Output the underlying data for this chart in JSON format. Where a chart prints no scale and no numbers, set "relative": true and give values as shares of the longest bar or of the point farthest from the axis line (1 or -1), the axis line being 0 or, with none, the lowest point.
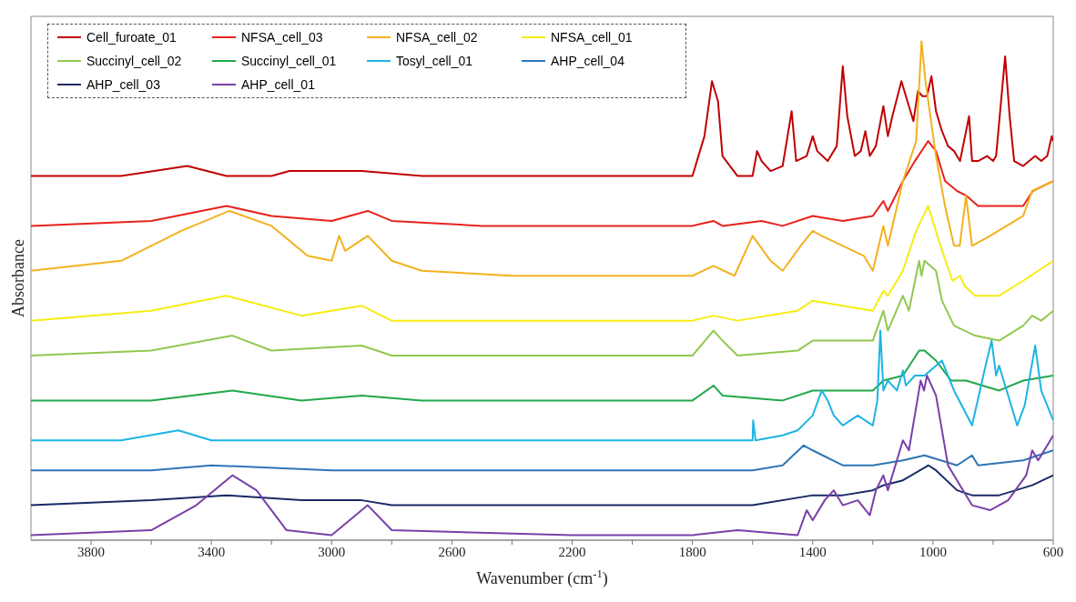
{
  "chart_data": {
    "type": "line",
    "relative": true,
    "xlabel": "Wavenumber (cm$^{-1}$)",
    "ylabel": "Absorbance",
    "legend": "top left",
    "marker": "none",
    "line_style": "solid",
    "xlim": [
      4000,
      600
    ],
    "xticks": [
      3800,
      {
        "value": 3600,
        "label": null
      },
      3400,
      {
        "value": 3200,
        "label": null
      },
      3000,
      {
        "value": 2800,
        "label": null
      },
      2600,
      {
        "value": 2400,
        "label": null
      },
      2200,
      {
        "value": 2000,
        "label": null
      },
      1800,
      {
        "value": 1600,
        "label": null
      },
      1400,
      {
        "value": 1200,
        "label": null
      },
      1000,
      {
        "value": 800,
        "label": null
      },
      600
    ],
    "series": [
      {
        "name": "Cell_furoate_01",
        "color": "#c00000",
        "x": [
          4000,
          3700,
          3480,
          3350,
          3200,
          3140,
          3100,
          2900,
          2700,
          2400,
          2200,
          1800,
          1760,
          1735,
          1715,
          1700,
          1650,
          1600,
          1585,
          1570,
          1540,
          1500,
          1470,
          1455,
          1420,
          1400,
          1385,
          1350,
          1320,
          1300,
          1285,
          1260,
          1240,
          1225,
          1210,
          1190,
          1165,
          1150,
          1135,
          1105,
          1085,
          1065,
          1050,
          1035,
          1020,
          1005,
          990,
          970,
          950,
          930,
          910,
          880,
          870,
          850,
          820,
          800,
          790,
          760,
          745,
          730,
          700,
          680,
          660,
          640,
          620,
          605,
          600
        ],
        "values": [
          0.73,
          0.73,
          0.75,
          0.73,
          0.73,
          0.74,
          0.74,
          0.74,
          0.73,
          0.73,
          0.73,
          0.73,
          0.81,
          0.92,
          0.88,
          0.77,
          0.73,
          0.73,
          0.78,
          0.76,
          0.74,
          0.75,
          0.86,
          0.76,
          0.77,
          0.81,
          0.78,
          0.76,
          0.79,
          0.95,
          0.85,
          0.77,
          0.78,
          0.82,
          0.77,
          0.79,
          0.87,
          0.81,
          0.85,
          0.92,
          0.88,
          0.84,
          0.9,
          0.89,
          0.89,
          0.93,
          0.86,
          0.82,
          0.79,
          0.78,
          0.76,
          0.85,
          0.76,
          0.76,
          0.77,
          0.76,
          0.77,
          0.97,
          0.85,
          0.76,
          0.75,
          0.76,
          0.77,
          0.76,
          0.77,
          0.81,
          0.8
        ]
      },
      {
        "name": "NFSA_cell_03",
        "color": "#e8221c",
        "x": [
          4000,
          3600,
          3350,
          3200,
          3000,
          2880,
          2800,
          2500,
          2200,
          1800,
          1730,
          1700,
          1570,
          1500,
          1400,
          1300,
          1200,
          1165,
          1150,
          1100,
          1060,
          1016,
          990,
          960,
          920,
          888,
          850,
          750,
          700,
          668,
          600
        ],
        "values": [
          0.63,
          0.64,
          0.67,
          0.65,
          0.64,
          0.66,
          0.64,
          0.63,
          0.63,
          0.63,
          0.64,
          0.63,
          0.64,
          0.63,
          0.65,
          0.64,
          0.65,
          0.68,
          0.66,
          0.72,
          0.76,
          0.8,
          0.78,
          0.72,
          0.7,
          0.69,
          0.67,
          0.67,
          0.67,
          0.7,
          0.72
        ]
      },
      {
        "name": "NFSA_cell_02",
        "color": "#f2b21f",
        "x": [
          4000,
          3700,
          3500,
          3340,
          3200,
          3080,
          3000,
          2975,
          2955,
          2880,
          2800,
          2700,
          2400,
          2200,
          1800,
          1730,
          1660,
          1600,
          1540,
          1500,
          1440,
          1400,
          1370,
          1300,
          1230,
          1200,
          1165,
          1150,
          1100,
          1056,
          1038,
          1025,
          990,
          960,
          930,
          911,
          890,
          870,
          810,
          700,
          670,
          600
        ],
        "values": [
          0.54,
          0.56,
          0.62,
          0.66,
          0.63,
          0.57,
          0.56,
          0.61,
          0.58,
          0.61,
          0.56,
          0.54,
          0.53,
          0.53,
          0.53,
          0.55,
          0.53,
          0.61,
          0.56,
          0.54,
          0.59,
          0.62,
          0.61,
          0.59,
          0.57,
          0.54,
          0.63,
          0.59,
          0.72,
          0.8,
          1.0,
          0.92,
          0.77,
          0.67,
          0.59,
          0.59,
          0.69,
          0.59,
          0.61,
          0.65,
          0.7,
          0.72
        ]
      },
      {
        "name": "NFSA_cell_01",
        "color": "#f7ec13",
        "x": [
          4000,
          3600,
          3350,
          3100,
          2900,
          2800,
          2200,
          1800,
          1730,
          1650,
          1450,
          1400,
          1300,
          1200,
          1165,
          1150,
          1100,
          1056,
          1016,
          975,
          935,
          910,
          895,
          860,
          780,
          700,
          650,
          600
        ],
        "values": [
          0.44,
          0.46,
          0.49,
          0.45,
          0.47,
          0.44,
          0.44,
          0.44,
          0.45,
          0.44,
          0.46,
          0.48,
          0.47,
          0.46,
          0.5,
          0.49,
          0.54,
          0.62,
          0.67,
          0.59,
          0.52,
          0.53,
          0.51,
          0.49,
          0.49,
          0.52,
          0.54,
          0.56
        ]
      },
      {
        "name": "Succinyl_cell_02",
        "color": "#92c850",
        "x": [
          4000,
          3600,
          3330,
          3200,
          2900,
          2800,
          2200,
          1800,
          1730,
          1700,
          1650,
          1450,
          1400,
          1300,
          1200,
          1165,
          1150,
          1100,
          1080,
          1046,
          1038,
          1028,
          990,
          970,
          930,
          860,
          780,
          700,
          670,
          640,
          600
        ],
        "values": [
          0.37,
          0.38,
          0.41,
          0.38,
          0.39,
          0.37,
          0.37,
          0.37,
          0.42,
          0.4,
          0.37,
          0.38,
          0.4,
          0.4,
          0.4,
          0.46,
          0.42,
          0.49,
          0.46,
          0.56,
          0.53,
          0.56,
          0.54,
          0.48,
          0.43,
          0.41,
          0.4,
          0.43,
          0.45,
          0.44,
          0.46
        ]
      },
      {
        "name": "Succinyl_cell_01",
        "color": "#21a84a",
        "x": [
          4000,
          3600,
          3330,
          3100,
          2900,
          2700,
          2200,
          1800,
          1730,
          1700,
          1500,
          1400,
          1200,
          1165,
          1100,
          1046,
          1028,
          990,
          940,
          890,
          780,
          700,
          600
        ],
        "values": [
          0.28,
          0.28,
          0.3,
          0.28,
          0.29,
          0.28,
          0.28,
          0.28,
          0.31,
          0.29,
          0.28,
          0.3,
          0.3,
          0.32,
          0.33,
          0.38,
          0.38,
          0.36,
          0.32,
          0.32,
          0.3,
          0.32,
          0.33
        ]
      },
      {
        "name": "Tosyl_cell_01",
        "color": "#1db4e3",
        "x": [
          4000,
          3700,
          3510,
          3400,
          2900,
          2200,
          1800,
          1600,
          1598,
          1590,
          1500,
          1450,
          1400,
          1370,
          1350,
          1330,
          1300,
          1250,
          1200,
          1185,
          1175,
          1165,
          1150,
          1120,
          1100,
          1090,
          1060,
          1028,
          970,
          930,
          870,
          825,
          805,
          790,
          780,
          720,
          695,
          660,
          640,
          600
        ],
        "values": [
          0.2,
          0.2,
          0.22,
          0.2,
          0.2,
          0.2,
          0.2,
          0.2,
          0.24,
          0.2,
          0.21,
          0.22,
          0.25,
          0.3,
          0.28,
          0.25,
          0.23,
          0.25,
          0.23,
          0.28,
          0.42,
          0.3,
          0.32,
          0.3,
          0.34,
          0.31,
          0.33,
          0.33,
          0.36,
          0.3,
          0.23,
          0.35,
          0.4,
          0.33,
          0.35,
          0.23,
          0.27,
          0.39,
          0.3,
          0.24
        ]
      },
      {
        "name": "AHP_cell_04",
        "color": "#2e75b6",
        "x": [
          4000,
          3600,
          3400,
          3000,
          2200,
          1600,
          1500,
          1430,
          1400,
          1300,
          1200,
          1100,
          1028,
          920,
          870,
          850,
          700,
          600
        ],
        "values": [
          0.14,
          0.14,
          0.15,
          0.14,
          0.14,
          0.14,
          0.15,
          0.19,
          0.18,
          0.15,
          0.15,
          0.16,
          0.17,
          0.15,
          0.17,
          0.15,
          0.16,
          0.18
        ]
      },
      {
        "name": "AHP_cell_03",
        "color": "#1a2a66",
        "x": [
          4000,
          3600,
          3350,
          3100,
          2900,
          2800,
          2200,
          1600,
          1400,
          1300,
          1200,
          1165,
          1100,
          1015,
          990,
          920,
          870,
          780,
          670,
          600
        ],
        "values": [
          0.07,
          0.08,
          0.09,
          0.08,
          0.08,
          0.07,
          0.07,
          0.07,
          0.09,
          0.09,
          0.1,
          0.11,
          0.12,
          0.15,
          0.14,
          0.1,
          0.09,
          0.09,
          0.11,
          0.13
        ]
      },
      {
        "name": "AHP_cell_01",
        "color": "#7a3fa8",
        "x": [
          4000,
          3600,
          3450,
          3330,
          3250,
          3150,
          3000,
          2880,
          2800,
          2200,
          1800,
          1650,
          1450,
          1420,
          1400,
          1360,
          1330,
          1300,
          1250,
          1210,
          1190,
          1165,
          1150,
          1100,
          1080,
          1041,
          1030,
          1020,
          990,
          950,
          910,
          870,
          810,
          750,
          690,
          670,
          650,
          600
        ],
        "values": [
          0.01,
          0.02,
          0.07,
          0.13,
          0.1,
          0.02,
          0.01,
          0.07,
          0.02,
          0.01,
          0.01,
          0.02,
          0.01,
          0.06,
          0.04,
          0.08,
          0.1,
          0.07,
          0.08,
          0.05,
          0.1,
          0.13,
          0.1,
          0.2,
          0.18,
          0.32,
          0.3,
          0.33,
          0.29,
          0.15,
          0.11,
          0.07,
          0.06,
          0.08,
          0.13,
          0.18,
          0.16,
          0.21
        ]
      }
    ]
  }
}
